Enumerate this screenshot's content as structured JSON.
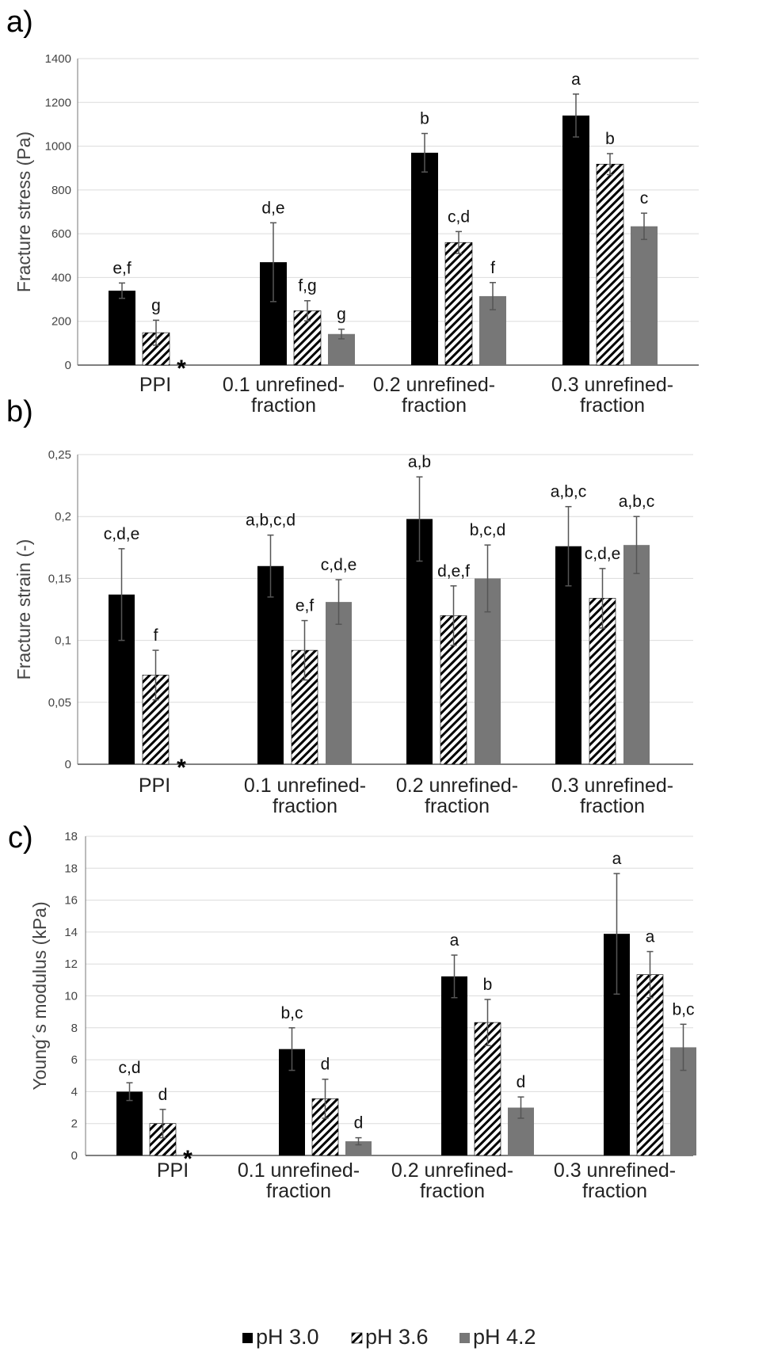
{
  "legend": [
    {
      "label": "pH 3.0",
      "fill": "#000000"
    },
    {
      "label": "pH 3.6",
      "fill": "hatch"
    },
    {
      "label": "pH 4.2",
      "fill": "#777777"
    }
  ],
  "chart_data": [
    {
      "type": "bar",
      "panel": "a)",
      "ylabel": "Fracture stress (Pa)",
      "ylim": [
        0,
        1400
      ],
      "yticks": [
        "0",
        "200",
        "400",
        "600",
        "800",
        "1000",
        "1200",
        "1400"
      ],
      "categories": [
        [
          "PPI"
        ],
        [
          "0.1 unrefined-",
          "fraction"
        ],
        [
          "0.2 unrefined-",
          "fraction"
        ],
        [
          "0.3 unrefined-",
          "fraction"
        ]
      ],
      "series": [
        {
          "name": "pH 3.0",
          "values": [
            340,
            470,
            970,
            1140
          ],
          "errors": [
            35,
            180,
            88,
            98
          ],
          "labels": [
            "e,f",
            "d,e",
            "b",
            "a"
          ]
        },
        {
          "name": "pH 3.6",
          "values": [
            148,
            248,
            560,
            918
          ],
          "errors": [
            57,
            46,
            50,
            48
          ],
          "labels": [
            "g",
            "f,g",
            "c,d",
            "b"
          ]
        },
        {
          "name": "pH 4.2",
          "values": [
            null,
            142,
            315,
            634
          ],
          "errors": [
            null,
            22,
            62,
            60
          ],
          "labels": [
            null,
            "g",
            "f",
            "c"
          ]
        }
      ],
      "missing_marker": "*"
    },
    {
      "type": "bar",
      "panel": "b)",
      "ylabel": "Fracture strain (-)",
      "ylim": [
        0,
        0.25
      ],
      "yticks": [
        "0",
        "0,05",
        "0,1",
        "0,15",
        "0,2",
        "0,25"
      ],
      "categories": [
        [
          "PPI"
        ],
        [
          "0.1 unrefined-",
          "fraction"
        ],
        [
          "0.2 unrefined-",
          "fraction"
        ],
        [
          "0.3 unrefined-",
          "fraction"
        ]
      ],
      "series": [
        {
          "name": "pH 3.0",
          "values": [
            0.137,
            0.16,
            0.198,
            0.176
          ],
          "errors": [
            0.037,
            0.025,
            0.034,
            0.032
          ],
          "labels": [
            "c,d,e",
            "a,b,c,d",
            "a,b",
            "a,b,c"
          ]
        },
        {
          "name": "pH 3.6",
          "values": [
            0.072,
            0.092,
            0.12,
            0.134
          ],
          "errors": [
            0.02,
            0.024,
            0.024,
            0.024
          ],
          "labels": [
            "f",
            "e,f",
            "d,e,f",
            "c,d,e"
          ]
        },
        {
          "name": "pH 4.2",
          "values": [
            null,
            0.131,
            0.15,
            0.177
          ],
          "errors": [
            null,
            0.018,
            0.027,
            0.023
          ],
          "labels": [
            null,
            "c,d,e",
            "b,c,d",
            "a,b,c"
          ]
        }
      ],
      "missing_marker": "*"
    },
    {
      "type": "bar",
      "panel": "c)",
      "ylabel": "Young´s modulus (kPa)",
      "ylim": [
        0,
        18
      ],
      "yticks": [
        "0",
        "2",
        "4",
        "6",
        "8",
        "10",
        "12",
        "14",
        "16",
        "18",
        "18"
      ],
      "categories": [
        [
          "PPI"
        ],
        [
          "0.1 unrefined-",
          "fraction"
        ],
        [
          "0.2 unrefined-",
          "fraction"
        ],
        [
          "0.3 unrefined-",
          "fraction"
        ]
      ],
      "series": [
        {
          "name": "pH 3.0",
          "values": [
            3.6,
            6.0,
            10.1,
            12.5
          ],
          "errors": [
            0.5,
            1.2,
            1.2,
            3.4
          ],
          "labels": [
            "c,d",
            "b,c",
            "a",
            "a"
          ]
        },
        {
          "name": "pH 3.6",
          "values": [
            1.8,
            3.2,
            7.5,
            10.2
          ],
          "errors": [
            0.8,
            1.1,
            1.3,
            1.3
          ],
          "labels": [
            "d",
            "d",
            "b",
            "a"
          ]
        },
        {
          "name": "pH 4.2",
          "values": [
            null,
            0.8,
            2.7,
            6.1
          ],
          "errors": [
            null,
            0.2,
            0.6,
            1.3
          ],
          "labels": [
            null,
            "d",
            "d",
            "b,c"
          ]
        }
      ],
      "missing_marker": "*"
    }
  ]
}
